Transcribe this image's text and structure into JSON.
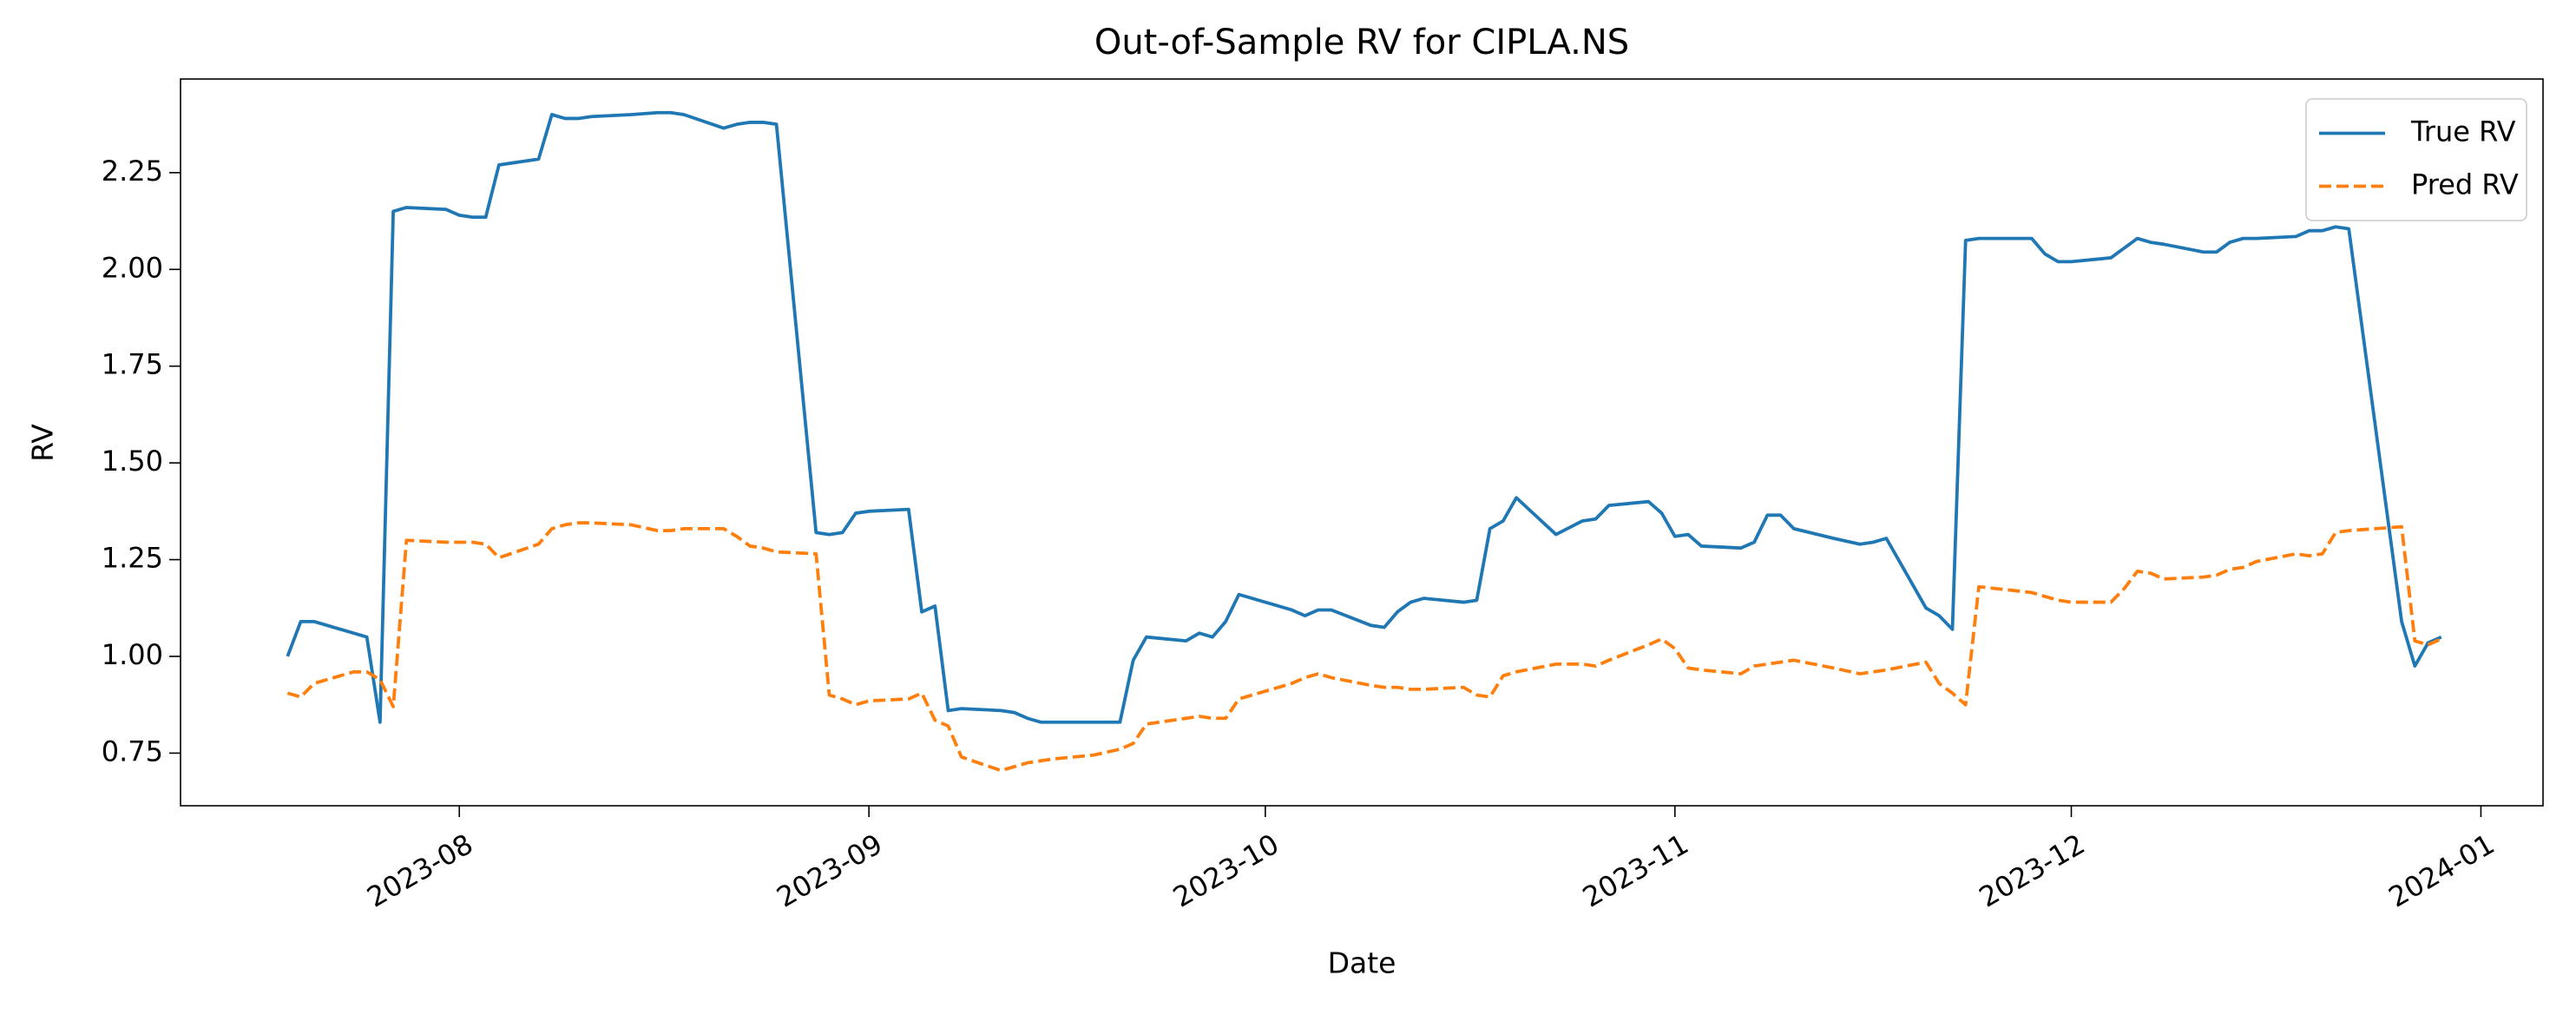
{
  "chart_data": {
    "type": "line",
    "title": "Out-of-Sample RV for CIPLA.NS",
    "x_label": "Date",
    "y_label": "RV",
    "x": [
      19557,
      19558,
      19559,
      19562,
      19563,
      19564,
      19565,
      19566,
      19569,
      19570,
      19571,
      19572,
      19573,
      19576,
      19577,
      19578,
      19579,
      19580,
      19583,
      19585,
      19586,
      19587,
      19590,
      19591,
      19592,
      19593,
      19594,
      19597,
      19598,
      19599,
      19600,
      19601,
      19604,
      19605,
      19606,
      19607,
      19608,
      19611,
      19612,
      19613,
      19614,
      19615,
      19618,
      19620,
      19621,
      19622,
      19625,
      19626,
      19627,
      19628,
      19629,
      19633,
      19634,
      19635,
      19636,
      19639,
      19640,
      19641,
      19642,
      19643,
      19646,
      19647,
      19648,
      19649,
      19650,
      19653,
      19655,
      19656,
      19657,
      19660,
      19661,
      19662,
      19663,
      19664,
      19667,
      19668,
      19669,
      19670,
      19671,
      19674,
      19676,
      19677,
      19678,
      19681,
      19682,
      19683,
      19684,
      19685,
      19689,
      19690,
      19691,
      19692,
      19695,
      19696,
      19697,
      19698,
      19699,
      19702,
      19703,
      19704,
      19705,
      19706,
      19709,
      19710,
      19711,
      19712,
      19713,
      19717,
      19718,
      19719,
      19720
    ],
    "series": [
      {
        "name": "True RV",
        "color": "#1f77b4",
        "dash": false,
        "values": [
          1.0,
          1.09,
          1.09,
          1.06,
          1.05,
          0.83,
          2.15,
          2.16,
          2.155,
          2.14,
          2.135,
          2.135,
          2.27,
          2.285,
          2.4,
          2.39,
          2.39,
          2.395,
          2.4,
          2.405,
          2.405,
          2.4,
          2.365,
          2.375,
          2.38,
          2.38,
          2.375,
          1.32,
          1.315,
          1.32,
          1.37,
          1.375,
          1.38,
          1.115,
          1.13,
          0.86,
          0.865,
          0.86,
          0.855,
          0.84,
          0.83,
          0.83,
          0.83,
          0.83,
          0.99,
          1.05,
          1.04,
          1.06,
          1.05,
          1.09,
          1.16,
          1.12,
          1.105,
          1.12,
          1.12,
          1.08,
          1.075,
          1.115,
          1.14,
          1.15,
          1.14,
          1.145,
          1.33,
          1.35,
          1.41,
          1.315,
          1.35,
          1.355,
          1.39,
          1.4,
          1.37,
          1.31,
          1.315,
          1.285,
          1.28,
          1.295,
          1.365,
          1.365,
          1.33,
          1.305,
          1.29,
          1.295,
          1.305,
          1.125,
          1.105,
          1.07,
          2.075,
          2.08,
          2.08,
          2.04,
          2.02,
          2.02,
          2.03,
          2.055,
          2.08,
          2.07,
          2.065,
          2.045,
          2.045,
          2.07,
          2.08,
          2.08,
          2.085,
          2.1,
          2.1,
          2.11,
          2.105,
          1.09,
          0.975,
          1.035,
          1.05
        ]
      },
      {
        "name": "Pred RV",
        "color": "#ff7f0e",
        "dash": true,
        "values": [
          0.905,
          0.895,
          0.93,
          0.96,
          0.96,
          0.94,
          0.87,
          1.3,
          1.295,
          1.295,
          1.295,
          1.29,
          1.255,
          1.29,
          1.33,
          1.34,
          1.345,
          1.345,
          1.34,
          1.325,
          1.325,
          1.33,
          1.33,
          1.31,
          1.285,
          1.28,
          1.27,
          1.265,
          0.9,
          0.89,
          0.875,
          0.885,
          0.89,
          0.905,
          0.835,
          0.82,
          0.74,
          0.705,
          0.715,
          0.725,
          0.73,
          0.735,
          0.745,
          0.76,
          0.775,
          0.825,
          0.84,
          0.845,
          0.84,
          0.84,
          0.89,
          0.93,
          0.945,
          0.955,
          0.945,
          0.925,
          0.92,
          0.92,
          0.915,
          0.915,
          0.92,
          0.9,
          0.895,
          0.95,
          0.96,
          0.98,
          0.98,
          0.975,
          0.99,
          1.03,
          1.045,
          1.02,
          0.97,
          0.965,
          0.955,
          0.975,
          0.98,
          0.985,
          0.99,
          0.97,
          0.955,
          0.96,
          0.965,
          0.985,
          0.93,
          0.905,
          0.875,
          1.18,
          1.165,
          1.155,
          1.145,
          1.14,
          1.14,
          1.175,
          1.22,
          1.215,
          1.2,
          1.205,
          1.21,
          1.225,
          1.23,
          1.245,
          1.265,
          1.26,
          1.265,
          1.32,
          1.325,
          1.335,
          1.04,
          1.03,
          1.045
        ]
      }
    ],
    "xlim": [
      19548.9,
      19727.7
    ],
    "xticks": [
      {
        "value": 19570,
        "label": "2023-08"
      },
      {
        "value": 19601,
        "label": "2023-09"
      },
      {
        "value": 19631,
        "label": "2023-10"
      },
      {
        "value": 19662,
        "label": "2023-11"
      },
      {
        "value": 19692,
        "label": "2023-12"
      },
      {
        "value": 19723,
        "label": "2024-01"
      }
    ],
    "ylim": [
      0.614,
      2.492
    ],
    "yticks": [
      0.75,
      {
        "value": 1.0,
        "label": "1.00"
      },
      1.25,
      {
        "value": 1.5,
        "label": "1.50"
      },
      1.75,
      {
        "value": 2.0,
        "label": "2.00"
      },
      2.25
    ],
    "grid": false,
    "legend": "upper right"
  }
}
